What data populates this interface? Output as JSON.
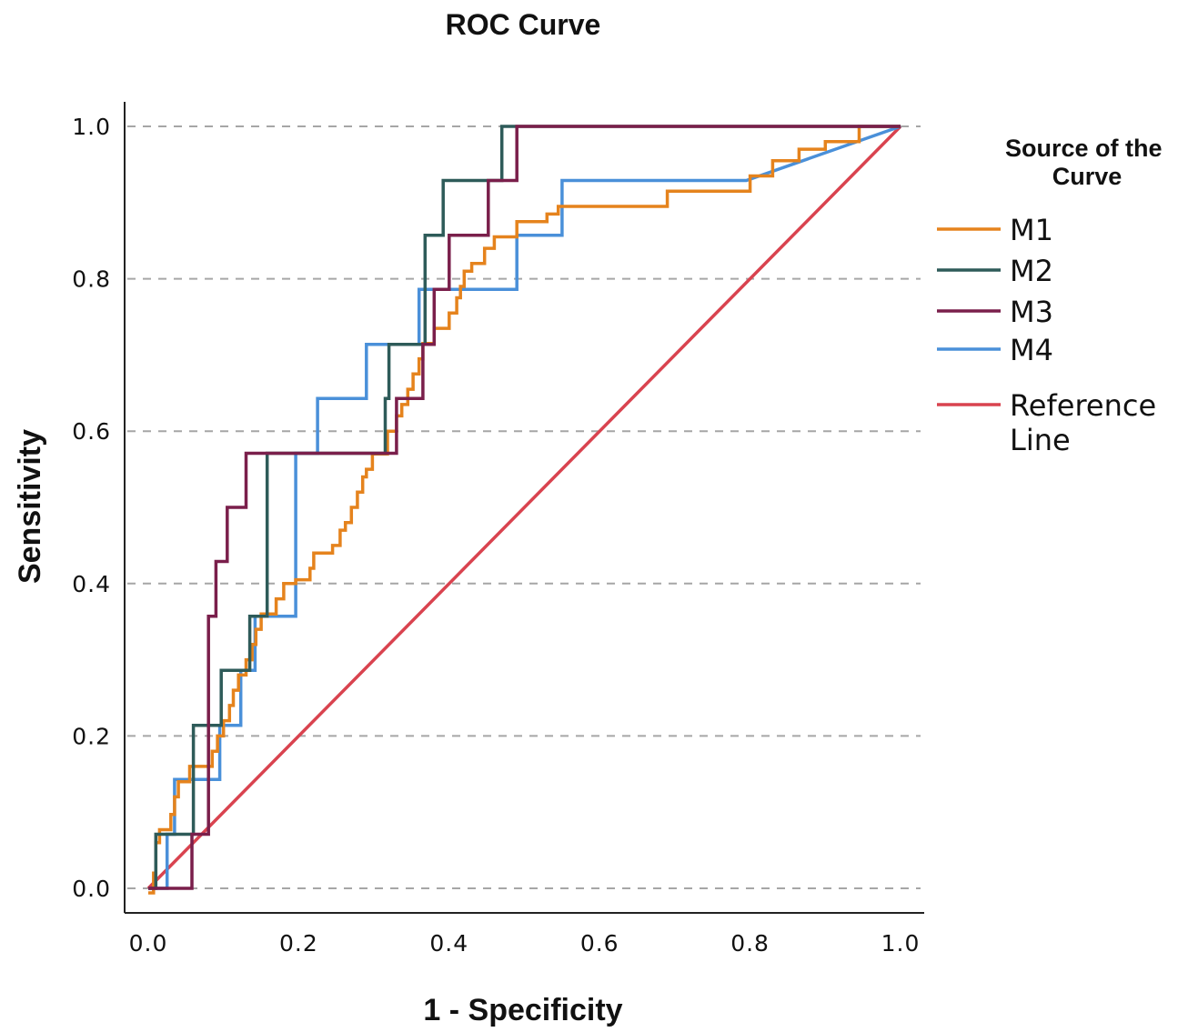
{
  "chart_data": {
    "type": "line",
    "title": "ROC Curve",
    "xlabel": "1 - Specificity",
    "ylabel": "Sensitivity",
    "xlim": [
      0.0,
      1.0
    ],
    "ylim": [
      0.0,
      1.0
    ],
    "x_ticks": [
      "0.0",
      "0.2",
      "0.4",
      "0.6",
      "0.8",
      "1.0"
    ],
    "y_ticks": [
      "0.0",
      "0.2",
      "0.4",
      "0.6",
      "0.8",
      "1.0"
    ],
    "grid": "horizontal dashed",
    "legend": {
      "title": "Source of the Curve",
      "position": "right",
      "entries": [
        "M1",
        "M2",
        "M3",
        "M4",
        "Reference Line"
      ]
    },
    "series": [
      {
        "name": "M1",
        "color": "#e5831d",
        "points": [
          [
            0.0,
            -0.006
          ],
          [
            0.007,
            -0.006
          ],
          [
            0.007,
            0.02
          ],
          [
            0.01,
            0.02
          ],
          [
            0.01,
            0.06
          ],
          [
            0.015,
            0.06
          ],
          [
            0.015,
            0.077
          ],
          [
            0.03,
            0.077
          ],
          [
            0.03,
            0.097
          ],
          [
            0.035,
            0.097
          ],
          [
            0.035,
            0.12
          ],
          [
            0.04,
            0.12
          ],
          [
            0.04,
            0.14
          ],
          [
            0.055,
            0.14
          ],
          [
            0.055,
            0.16
          ],
          [
            0.085,
            0.16
          ],
          [
            0.085,
            0.18
          ],
          [
            0.092,
            0.18
          ],
          [
            0.092,
            0.2
          ],
          [
            0.1,
            0.2
          ],
          [
            0.1,
            0.22
          ],
          [
            0.108,
            0.22
          ],
          [
            0.108,
            0.24
          ],
          [
            0.113,
            0.24
          ],
          [
            0.113,
            0.26
          ],
          [
            0.12,
            0.26
          ],
          [
            0.12,
            0.28
          ],
          [
            0.13,
            0.28
          ],
          [
            0.13,
            0.3
          ],
          [
            0.138,
            0.3
          ],
          [
            0.138,
            0.32
          ],
          [
            0.143,
            0.32
          ],
          [
            0.143,
            0.34
          ],
          [
            0.15,
            0.34
          ],
          [
            0.15,
            0.36
          ],
          [
            0.17,
            0.36
          ],
          [
            0.17,
            0.38
          ],
          [
            0.18,
            0.38
          ],
          [
            0.18,
            0.4
          ],
          [
            0.196,
            0.4
          ],
          [
            0.196,
            0.405
          ],
          [
            0.215,
            0.405
          ],
          [
            0.215,
            0.42
          ],
          [
            0.22,
            0.42
          ],
          [
            0.22,
            0.44
          ],
          [
            0.245,
            0.44
          ],
          [
            0.245,
            0.45
          ],
          [
            0.255,
            0.45
          ],
          [
            0.255,
            0.47
          ],
          [
            0.262,
            0.47
          ],
          [
            0.262,
            0.48
          ],
          [
            0.27,
            0.48
          ],
          [
            0.27,
            0.5
          ],
          [
            0.278,
            0.5
          ],
          [
            0.278,
            0.52
          ],
          [
            0.285,
            0.52
          ],
          [
            0.285,
            0.54
          ],
          [
            0.29,
            0.54
          ],
          [
            0.29,
            0.55
          ],
          [
            0.298,
            0.55
          ],
          [
            0.298,
            0.57
          ],
          [
            0.318,
            0.57
          ],
          [
            0.318,
            0.6
          ],
          [
            0.33,
            0.6
          ],
          [
            0.33,
            0.62
          ],
          [
            0.337,
            0.62
          ],
          [
            0.337,
            0.635
          ],
          [
            0.345,
            0.635
          ],
          [
            0.345,
            0.655
          ],
          [
            0.352,
            0.655
          ],
          [
            0.352,
            0.675
          ],
          [
            0.36,
            0.675
          ],
          [
            0.36,
            0.695
          ],
          [
            0.365,
            0.695
          ],
          [
            0.365,
            0.715
          ],
          [
            0.38,
            0.715
          ],
          [
            0.38,
            0.735
          ],
          [
            0.4,
            0.735
          ],
          [
            0.4,
            0.755
          ],
          [
            0.41,
            0.755
          ],
          [
            0.41,
            0.775
          ],
          [
            0.415,
            0.775
          ],
          [
            0.415,
            0.79
          ],
          [
            0.42,
            0.79
          ],
          [
            0.42,
            0.81
          ],
          [
            0.43,
            0.81
          ],
          [
            0.43,
            0.82
          ],
          [
            0.447,
            0.82
          ],
          [
            0.447,
            0.84
          ],
          [
            0.46,
            0.84
          ],
          [
            0.46,
            0.855
          ],
          [
            0.49,
            0.855
          ],
          [
            0.49,
            0.875
          ],
          [
            0.53,
            0.875
          ],
          [
            0.53,
            0.885
          ],
          [
            0.545,
            0.885
          ],
          [
            0.545,
            0.895
          ],
          [
            0.69,
            0.895
          ],
          [
            0.69,
            0.915
          ],
          [
            0.8,
            0.915
          ],
          [
            0.8,
            0.935
          ],
          [
            0.83,
            0.935
          ],
          [
            0.83,
            0.955
          ],
          [
            0.865,
            0.955
          ],
          [
            0.865,
            0.97
          ],
          [
            0.9,
            0.97
          ],
          [
            0.9,
            0.98
          ],
          [
            0.945,
            0.98
          ],
          [
            0.945,
            1.0
          ],
          [
            1.0,
            1.0
          ]
        ]
      },
      {
        "name": "M2",
        "color": "#2e5b59",
        "points": [
          [
            0.0,
            0.0
          ],
          [
            0.01,
            0.0
          ],
          [
            0.01,
            0.071
          ],
          [
            0.06,
            0.071
          ],
          [
            0.06,
            0.214
          ],
          [
            0.097,
            0.214
          ],
          [
            0.097,
            0.286
          ],
          [
            0.135,
            0.286
          ],
          [
            0.135,
            0.357
          ],
          [
            0.158,
            0.357
          ],
          [
            0.158,
            0.571
          ],
          [
            0.315,
            0.571
          ],
          [
            0.315,
            0.643
          ],
          [
            0.32,
            0.643
          ],
          [
            0.32,
            0.714
          ],
          [
            0.368,
            0.714
          ],
          [
            0.368,
            0.857
          ],
          [
            0.392,
            0.857
          ],
          [
            0.392,
            0.929
          ],
          [
            0.47,
            0.929
          ],
          [
            0.47,
            1.0
          ],
          [
            1.0,
            1.0
          ]
        ]
      },
      {
        "name": "M3",
        "color": "#7a1f4b",
        "points": [
          [
            0.0,
            0.0
          ],
          [
            0.058,
            0.0
          ],
          [
            0.058,
            0.071
          ],
          [
            0.08,
            0.071
          ],
          [
            0.08,
            0.357
          ],
          [
            0.09,
            0.357
          ],
          [
            0.09,
            0.429
          ],
          [
            0.105,
            0.429
          ],
          [
            0.105,
            0.5
          ],
          [
            0.13,
            0.5
          ],
          [
            0.13,
            0.571
          ],
          [
            0.33,
            0.571
          ],
          [
            0.33,
            0.643
          ],
          [
            0.365,
            0.643
          ],
          [
            0.365,
            0.714
          ],
          [
            0.38,
            0.714
          ],
          [
            0.38,
            0.786
          ],
          [
            0.4,
            0.786
          ],
          [
            0.4,
            0.857
          ],
          [
            0.452,
            0.857
          ],
          [
            0.452,
            0.929
          ],
          [
            0.49,
            0.929
          ],
          [
            0.49,
            1.0
          ],
          [
            1.0,
            1.0
          ]
        ]
      },
      {
        "name": "M4",
        "color": "#4a90d9",
        "points": [
          [
            0.0,
            0.0
          ],
          [
            0.025,
            0.0
          ],
          [
            0.025,
            0.071
          ],
          [
            0.035,
            0.071
          ],
          [
            0.035,
            0.143
          ],
          [
            0.095,
            0.143
          ],
          [
            0.095,
            0.214
          ],
          [
            0.123,
            0.214
          ],
          [
            0.123,
            0.286
          ],
          [
            0.142,
            0.286
          ],
          [
            0.142,
            0.357
          ],
          [
            0.196,
            0.357
          ],
          [
            0.196,
            0.571
          ],
          [
            0.225,
            0.571
          ],
          [
            0.225,
            0.643
          ],
          [
            0.29,
            0.643
          ],
          [
            0.29,
            0.714
          ],
          [
            0.36,
            0.714
          ],
          [
            0.36,
            0.786
          ],
          [
            0.49,
            0.786
          ],
          [
            0.49,
            0.857
          ],
          [
            0.55,
            0.857
          ],
          [
            0.55,
            0.929
          ],
          [
            0.795,
            0.929
          ],
          [
            1.0,
            1.0
          ]
        ]
      },
      {
        "name": "Reference Line",
        "color": "#d9434f",
        "points": [
          [
            0.0,
            0.0
          ],
          [
            1.0,
            1.0
          ]
        ]
      }
    ]
  }
}
